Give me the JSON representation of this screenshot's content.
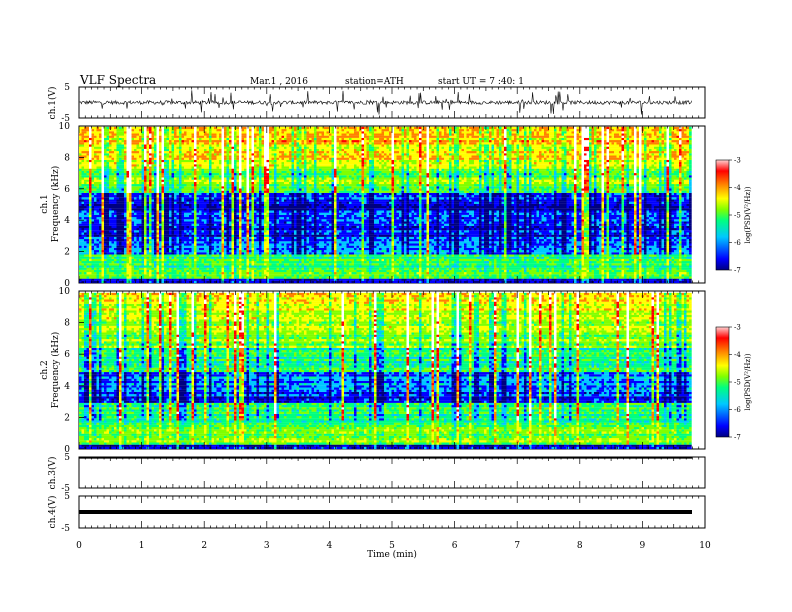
{
  "header": {
    "title": "VLF Spectra",
    "date": "Mar.1 , 2016",
    "station": "station=ATH",
    "start": "start UT = 7 :40: 1"
  },
  "colors": {
    "spectrum_scale": [
      "#000080",
      "#0000ff",
      "#00c8ff",
      "#00ff80",
      "#80ff00",
      "#ffff00",
      "#ff8000",
      "#ff0000",
      "#ffffff"
    ],
    "trace": "#000000"
  },
  "chart_data": [
    {
      "type": "line",
      "name": "ch1-waveform",
      "ylabel": "ch.1(V)",
      "ylim": [
        -5,
        5
      ],
      "yticks": [
        "5",
        "-5"
      ],
      "xlim": [
        0,
        10
      ],
      "baseline_v": 0.0,
      "amplitude_v": 2.5
    },
    {
      "type": "heatmap",
      "name": "ch1-spectrogram",
      "ylabel": "ch.1 Frequency (kHz)",
      "ylim": [
        0,
        10
      ],
      "yticks": [
        "10",
        "8",
        "6",
        "4",
        "2",
        "0"
      ],
      "xlim": [
        0,
        9.8
      ],
      "colorbar": {
        "label": "log(PSD(V²/Hz))",
        "range": [
          -7,
          -3
        ],
        "ticks": [
          "-3",
          "-4",
          "-5",
          "-6",
          "-7"
        ]
      }
    },
    {
      "type": "heatmap",
      "name": "ch2-spectrogram",
      "ylabel": "ch.2 Frequency (kHz)",
      "ylim": [
        0,
        10
      ],
      "yticks": [
        "10",
        "8",
        "6",
        "4",
        "2",
        "0"
      ],
      "xlim": [
        0,
        9.8
      ],
      "colorbar": {
        "label": "log(PSD(V²/Hz))",
        "range": [
          -7,
          -3
        ],
        "ticks": [
          "-3",
          "-4",
          "-5",
          "-6",
          "-7"
        ]
      }
    },
    {
      "type": "line",
      "name": "ch3-waveform",
      "ylabel": "ch.3(V)",
      "ylim": [
        -5,
        5
      ],
      "yticks": [
        "5",
        "-5"
      ],
      "xlim": [
        0,
        10
      ],
      "baseline_v": 5.0
    },
    {
      "type": "line",
      "name": "ch4-waveform",
      "ylabel": "ch.4(V)",
      "ylim": [
        -5,
        5
      ],
      "yticks": [
        "5",
        "-5"
      ],
      "xlim": [
        0,
        10
      ],
      "baseline_v": 0.0
    }
  ],
  "xaxis": {
    "label": "Time (min)",
    "range": [
      0,
      10
    ],
    "ticks": [
      "0",
      "1",
      "2",
      "3",
      "4",
      "5",
      "6",
      "7",
      "8",
      "9",
      "10"
    ]
  }
}
